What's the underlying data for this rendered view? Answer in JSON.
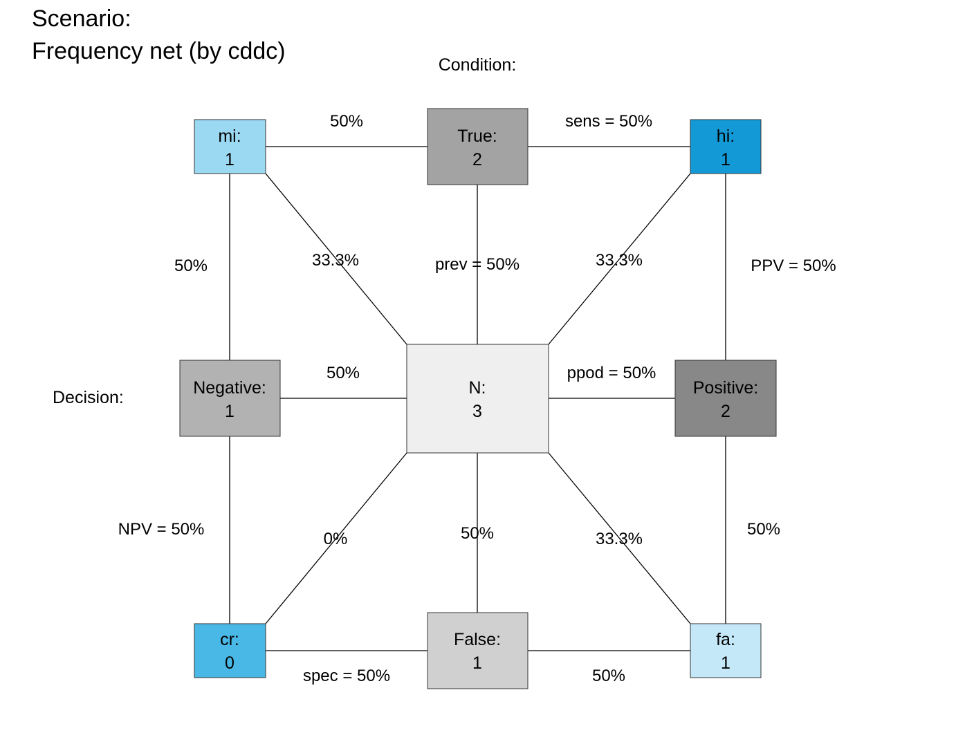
{
  "title_line1": "Scenario:",
  "title_line2": "Frequency net (by cddc)",
  "condition_label": "Condition:",
  "decision_label": "Decision:",
  "nodes": {
    "true": {
      "name": "True:",
      "count": "2",
      "fill": "#a3a3a3"
    },
    "false": {
      "name": "False:",
      "count": "1",
      "fill": "#d0d0d0"
    },
    "mi": {
      "name": "mi:",
      "count": "1",
      "fill": "#9bd8f2"
    },
    "hi": {
      "name": "hi:",
      "count": "1",
      "fill": "#139ad6"
    },
    "cr": {
      "name": "cr:",
      "count": "0",
      "fill": "#49b8e6"
    },
    "fa": {
      "name": "fa:",
      "count": "1",
      "fill": "#c4e8f8"
    },
    "negative": {
      "name": "Negative:",
      "count": "1",
      "fill": "#b2b2b2"
    },
    "positive": {
      "name": "Positive:",
      "count": "2",
      "fill": "#888888"
    },
    "n": {
      "name": "N:",
      "count": "3",
      "fill": "#efefef"
    }
  },
  "edge_labels": {
    "mi_true": "50%",
    "true_hi": "sens = 50%",
    "mi_negative": "50%",
    "mi_n": "33.3%",
    "true_n": "prev = 50%",
    "hi_n": "33.3%",
    "hi_positive": "PPV = 50%",
    "negative_n": "50%",
    "n_positive": "ppod = 50%",
    "negative_cr": "NPV = 50%",
    "cr_n": "0%",
    "false_n": "50%",
    "fa_n": "33.3%",
    "positive_fa": "50%",
    "cr_false": "spec = 50%",
    "false_fa": "50%"
  }
}
